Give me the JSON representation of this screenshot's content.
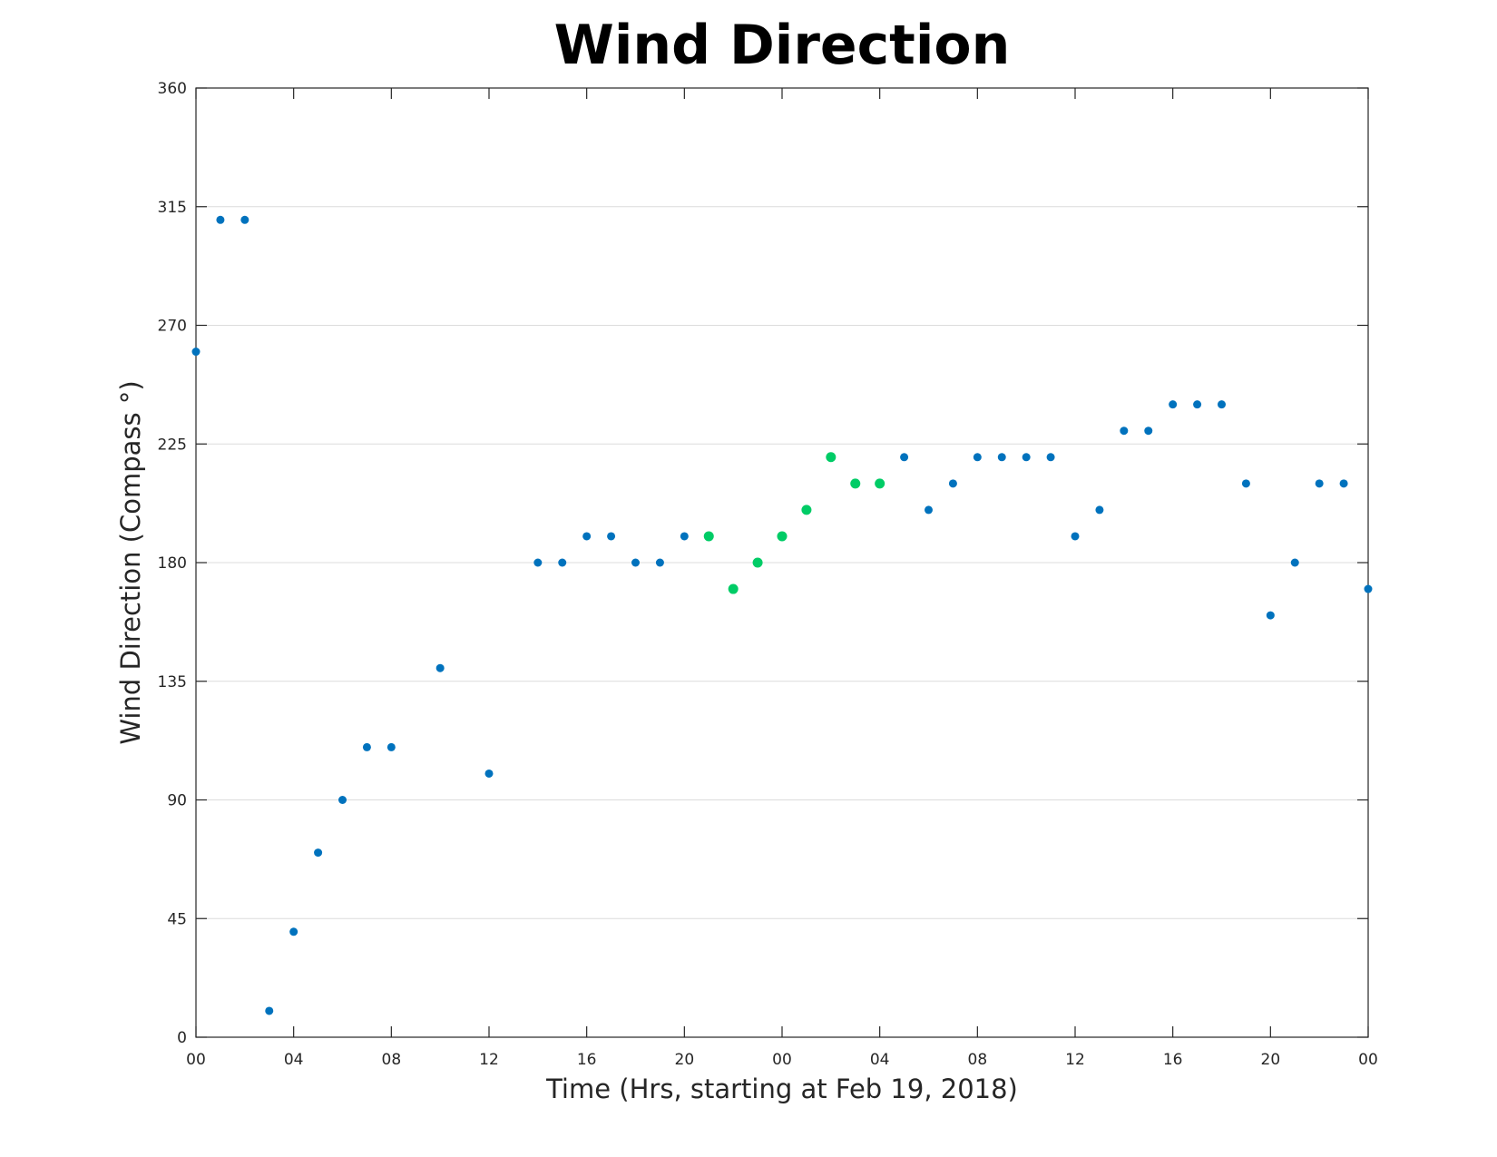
{
  "chart_data": {
    "type": "scatter",
    "title": "Wind Direction",
    "xlabel": "Time (Hrs, starting at Feb 19, 2018)",
    "ylabel": "Wind Direction (Compass °)",
    "xlim": [
      0,
      48
    ],
    "ylim": [
      0,
      360
    ],
    "x_ticks": [
      0,
      4,
      8,
      12,
      16,
      20,
      24,
      28,
      32,
      36,
      40,
      44,
      48
    ],
    "x_tick_labels": [
      "00",
      "04",
      "08",
      "12",
      "16",
      "20",
      "00",
      "04",
      "08",
      "12",
      "16",
      "20",
      "00"
    ],
    "y_ticks": [
      0,
      45,
      90,
      135,
      180,
      225,
      270,
      315,
      360
    ],
    "y_tick_labels": [
      "0",
      "45",
      "90",
      "135",
      "180",
      "225",
      "270",
      "315",
      "360"
    ],
    "grid": true,
    "series": [
      {
        "color": "#0072bd",
        "x": [
          0,
          1,
          2,
          3,
          4,
          5,
          6,
          7,
          8,
          10,
          12,
          14,
          15,
          16,
          17,
          18,
          19,
          20,
          29,
          30,
          31,
          32,
          33,
          34,
          35,
          36,
          37,
          38,
          39,
          40,
          41,
          42,
          43,
          44,
          45,
          46,
          47,
          48
        ],
        "y": [
          260,
          310,
          310,
          10,
          40,
          70,
          90,
          110,
          110,
          140,
          100,
          180,
          180,
          190,
          190,
          180,
          180,
          190,
          220,
          200,
          210,
          220,
          220,
          220,
          220,
          190,
          200,
          230,
          230,
          240,
          240,
          240,
          210,
          160,
          180,
          210,
          210,
          170
        ]
      },
      {
        "color": "#00cc66",
        "x": [
          21,
          22,
          23,
          24,
          25,
          26,
          27,
          28
        ],
        "y": [
          190,
          170,
          180,
          190,
          200,
          220,
          210,
          210
        ]
      }
    ]
  }
}
